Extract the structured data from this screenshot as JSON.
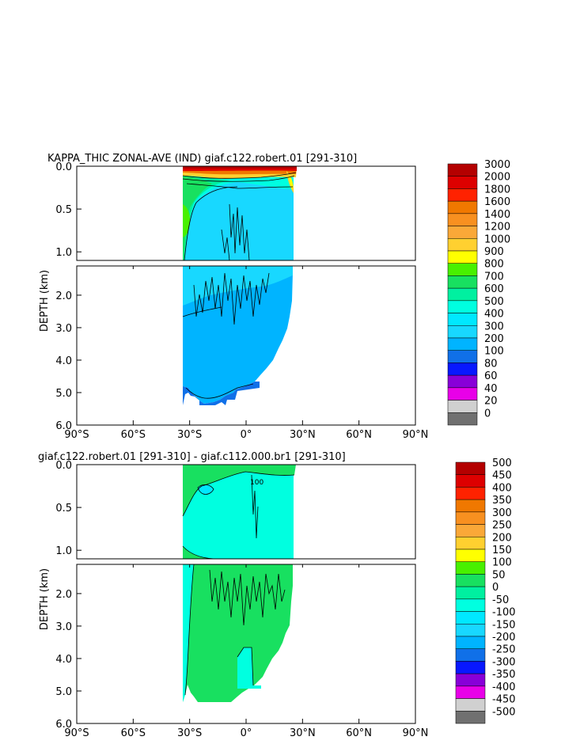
{
  "chart_data": [
    {
      "type": "heatmap",
      "plot_kind": "filled contour (zonal average, depth vs latitude)",
      "title": "KAPPA_THIC ZONAL-AVE (IND) giaf.c122.robert.01 [291-310]",
      "ylabel": "DEPTH (km)",
      "xlabel": "",
      "x_ticks": [
        "90°S",
        "60°S",
        "30°S",
        "0°",
        "30°N",
        "60°N",
        "90°N"
      ],
      "x_tick_values": [
        -90,
        -60,
        -30,
        0,
        30,
        60,
        90
      ],
      "upper_panel_ticks": [
        "0.0",
        "0.5",
        "1.0"
      ],
      "upper_panel_tick_values": [
        0.0,
        0.5,
        1.0
      ],
      "upper_panel_range_km": [
        0,
        1.1
      ],
      "lower_panel_ticks": [
        "2.0",
        "3.0",
        "4.0",
        "5.0",
        "6.0"
      ],
      "lower_panel_tick_values": [
        2.0,
        3.0,
        4.0,
        5.0,
        6.0
      ],
      "lower_panel_range_km": [
        1.1,
        6.0
      ],
      "xlim": [
        -90,
        90
      ],
      "data_lat_range": [
        -34,
        25
      ],
      "colorbar": {
        "labels": [
          "3000",
          "2000",
          "1800",
          "1600",
          "1400",
          "1200",
          "1000",
          "900",
          "800",
          "700",
          "600",
          "500",
          "400",
          "300",
          "200",
          "100",
          "80",
          "60",
          "40",
          "20",
          "0"
        ],
        "colors": [
          "#b40000",
          "#dd0000",
          "#ff2200",
          "#f07800",
          "#f89020",
          "#faa838",
          "#ffd030",
          "#ffff00",
          "#48f000",
          "#18e060",
          "#00f0a0",
          "#00ffe0",
          "#00e8ff",
          "#18d8ff",
          "#00b4ff",
          "#1070e8",
          "#0818ff",
          "#8800d8",
          "#e800e8",
          "#d0d0d0",
          "#707070"
        ]
      },
      "fields": {
        "bulk_value_range": [
          300,
          400
        ],
        "thermocline_band_range": [
          500,
          800
        ],
        "surface_layer_value": ">3000",
        "south_upper_flank_range": [
          600,
          800
        ],
        "deep_bottom_edge_range": [
          200,
          300
        ]
      }
    },
    {
      "type": "heatmap",
      "plot_kind": "filled contour difference (depth vs latitude)",
      "title": "giaf.c122.robert.01 [291-310] - giaf.c112.000.br1 [291-310]",
      "ylabel": "DEPTH (km)",
      "xlabel": "",
      "x_ticks": [
        "90°S",
        "60°S",
        "30°S",
        "0°",
        "30°N",
        "60°N",
        "90°N"
      ],
      "x_tick_values": [
        -90,
        -60,
        -30,
        0,
        30,
        60,
        90
      ],
      "upper_panel_ticks": [
        "0.0",
        "0.5",
        "1.0"
      ],
      "upper_panel_tick_values": [
        0.0,
        0.5,
        1.0
      ],
      "upper_panel_range_km": [
        0,
        1.1
      ],
      "lower_panel_ticks": [
        "2.0",
        "3.0",
        "4.0",
        "5.0",
        "6.0"
      ],
      "lower_panel_tick_values": [
        2.0,
        3.0,
        4.0,
        5.0,
        6.0
      ],
      "lower_panel_range_km": [
        1.1,
        6.0
      ],
      "xlim": [
        -90,
        90
      ],
      "data_lat_range": [
        -34,
        25
      ],
      "contour_label": "100",
      "colorbar": {
        "labels": [
          "500",
          "450",
          "400",
          "350",
          "300",
          "250",
          "200",
          "150",
          "100",
          "50",
          "0",
          "-50",
          "-100",
          "-150",
          "-200",
          "-250",
          "-300",
          "-350",
          "-400",
          "-450",
          "-500"
        ],
        "colors": [
          "#b40000",
          "#dd0000",
          "#ff2200",
          "#f07800",
          "#f89020",
          "#faa838",
          "#ffd030",
          "#ffff00",
          "#48f000",
          "#18e060",
          "#00f0a0",
          "#00ffe0",
          "#00e8ff",
          "#18d8ff",
          "#00b4ff",
          "#1070e8",
          "#0818ff",
          "#8800d8",
          "#e800e8",
          "#d0d0d0",
          "#707070"
        ]
      },
      "fields": {
        "upper_bulk_range": [
          -50,
          0
        ],
        "deep_bulk_range": [
          0,
          50
        ],
        "southern_flank_range": [
          -50,
          0
        ]
      }
    }
  ]
}
